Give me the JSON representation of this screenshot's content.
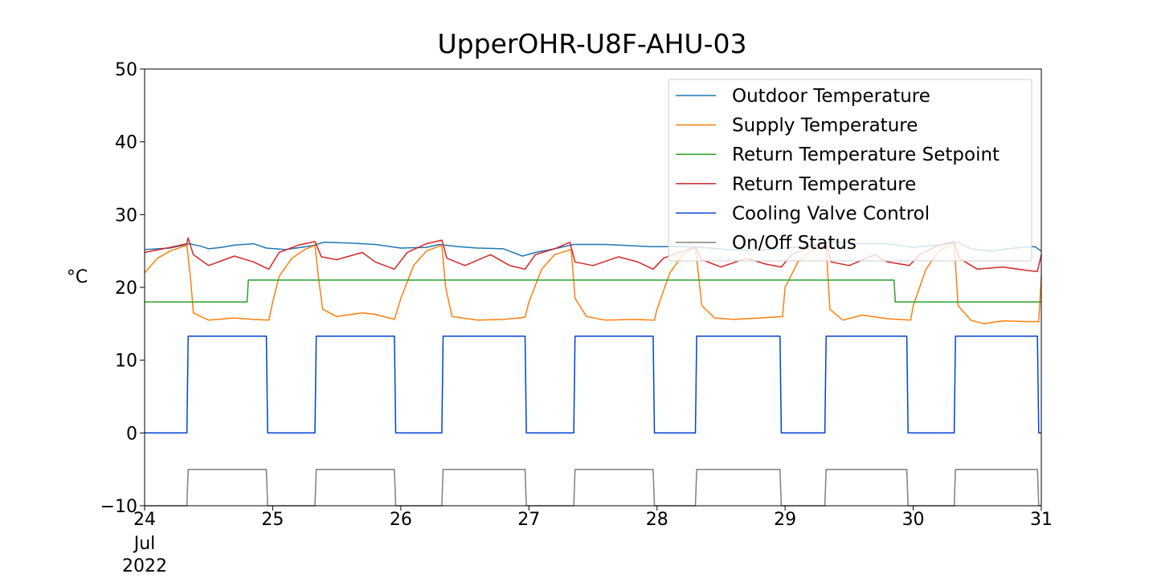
{
  "chart_data": {
    "type": "line",
    "title": "UpperOHR-U8F-AHU-03",
    "ylabel": "°C",
    "xlabel": "",
    "ylim": [
      -10,
      50
    ],
    "xlim": [
      24,
      31
    ],
    "yticks": [
      50,
      40,
      30,
      20,
      10,
      0,
      -10
    ],
    "ytick_labels": [
      "50",
      "40",
      "30",
      "20",
      "10",
      "0",
      "−10"
    ],
    "xticks": [
      24,
      25,
      26,
      27,
      28,
      29,
      30,
      31
    ],
    "xtick_labels": [
      "24",
      "25",
      "26",
      "27",
      "28",
      "29",
      "30",
      "31"
    ],
    "x_sublabels": [
      "Jul",
      "2022"
    ],
    "x_units": "day of July 2022",
    "grid": false,
    "legend_position": "top-right",
    "series": [
      {
        "name": "Outdoor Temperature",
        "color": "#1f77b4",
        "points": [
          [
            24.0,
            25.2
          ],
          [
            24.2,
            25.4
          ],
          [
            24.35,
            26.0
          ],
          [
            24.45,
            25.6
          ],
          [
            24.5,
            25.3
          ],
          [
            24.6,
            25.5
          ],
          [
            24.7,
            25.8
          ],
          [
            24.85,
            26.0
          ],
          [
            24.95,
            25.4
          ],
          [
            25.1,
            25.2
          ],
          [
            25.3,
            25.7
          ],
          [
            25.4,
            26.2
          ],
          [
            25.6,
            26.1
          ],
          [
            25.8,
            25.9
          ],
          [
            26.0,
            25.4
          ],
          [
            26.2,
            25.5
          ],
          [
            26.3,
            25.9
          ],
          [
            26.45,
            25.6
          ],
          [
            26.6,
            25.4
          ],
          [
            26.8,
            25.3
          ],
          [
            26.95,
            24.3
          ],
          [
            27.05,
            24.8
          ],
          [
            27.2,
            25.3
          ],
          [
            27.35,
            25.9
          ],
          [
            27.6,
            25.9
          ],
          [
            27.95,
            25.6
          ],
          [
            28.2,
            25.6
          ],
          [
            28.35,
            25.5
          ],
          [
            28.55,
            25.2
          ],
          [
            28.8,
            25.1
          ],
          [
            29.0,
            25.4
          ],
          [
            29.2,
            25.7
          ],
          [
            29.35,
            26.3
          ],
          [
            29.5,
            26.0
          ],
          [
            29.8,
            26.0
          ],
          [
            30.0,
            25.5
          ],
          [
            30.2,
            25.8
          ],
          [
            30.35,
            26.2
          ],
          [
            30.45,
            25.3
          ],
          [
            30.6,
            25.0
          ],
          [
            30.8,
            25.4
          ],
          [
            30.95,
            25.6
          ],
          [
            31.0,
            25.0
          ]
        ]
      },
      {
        "name": "Supply Temperature",
        "color": "#ff7f0e",
        "points": [
          [
            24.0,
            22.0
          ],
          [
            24.1,
            24.0
          ],
          [
            24.2,
            25.0
          ],
          [
            24.33,
            25.8
          ],
          [
            24.36,
            21.0
          ],
          [
            24.38,
            16.5
          ],
          [
            24.5,
            15.5
          ],
          [
            24.7,
            15.8
          ],
          [
            24.85,
            15.6
          ],
          [
            24.97,
            15.5
          ],
          [
            25.0,
            18.0
          ],
          [
            25.05,
            21.5
          ],
          [
            25.15,
            24.0
          ],
          [
            25.25,
            25.2
          ],
          [
            25.33,
            25.8
          ],
          [
            25.36,
            21.0
          ],
          [
            25.39,
            17.0
          ],
          [
            25.5,
            16.0
          ],
          [
            25.7,
            16.5
          ],
          [
            25.8,
            16.3
          ],
          [
            25.95,
            15.6
          ],
          [
            26.0,
            18.5
          ],
          [
            26.1,
            23.0
          ],
          [
            26.2,
            25.0
          ],
          [
            26.32,
            25.8
          ],
          [
            26.35,
            20.0
          ],
          [
            26.4,
            16.0
          ],
          [
            26.6,
            15.5
          ],
          [
            26.8,
            15.6
          ],
          [
            26.97,
            15.9
          ],
          [
            27.0,
            18.0
          ],
          [
            27.1,
            22.5
          ],
          [
            27.2,
            24.5
          ],
          [
            27.33,
            25.2
          ],
          [
            27.36,
            18.5
          ],
          [
            27.45,
            16.0
          ],
          [
            27.6,
            15.5
          ],
          [
            27.8,
            15.6
          ],
          [
            27.98,
            15.5
          ],
          [
            28.0,
            17.0
          ],
          [
            28.1,
            22.0
          ],
          [
            28.2,
            24.5
          ],
          [
            28.3,
            25.6
          ],
          [
            28.35,
            17.5
          ],
          [
            28.45,
            15.8
          ],
          [
            28.6,
            15.6
          ],
          [
            28.8,
            15.8
          ],
          [
            28.98,
            16.0
          ],
          [
            29.0,
            20.0
          ],
          [
            29.1,
            23.5
          ],
          [
            29.2,
            25.0
          ],
          [
            29.32,
            25.8
          ],
          [
            29.35,
            17.0
          ],
          [
            29.45,
            15.5
          ],
          [
            29.6,
            16.2
          ],
          [
            29.8,
            15.7
          ],
          [
            29.98,
            15.5
          ],
          [
            30.0,
            17.5
          ],
          [
            30.1,
            22.5
          ],
          [
            30.2,
            25.0
          ],
          [
            30.32,
            26.0
          ],
          [
            30.35,
            17.5
          ],
          [
            30.45,
            15.5
          ],
          [
            30.55,
            15.0
          ],
          [
            30.7,
            15.4
          ],
          [
            30.9,
            15.3
          ],
          [
            30.98,
            15.3
          ],
          [
            31.0,
            21.5
          ]
        ]
      },
      {
        "name": "Return Temperature Setpoint",
        "color": "#2ca02c",
        "points": [
          [
            24.0,
            18.0
          ],
          [
            24.8,
            18.0
          ],
          [
            24.81,
            21.0
          ],
          [
            29.85,
            21.0
          ],
          [
            29.86,
            18.0
          ],
          [
            31.0,
            18.0
          ]
        ]
      },
      {
        "name": "Return Temperature",
        "color": "#d62728",
        "points": [
          [
            24.0,
            24.8
          ],
          [
            24.2,
            25.5
          ],
          [
            24.33,
            26.0
          ],
          [
            24.34,
            26.8
          ],
          [
            24.38,
            24.5
          ],
          [
            24.5,
            23.0
          ],
          [
            24.7,
            24.3
          ],
          [
            24.85,
            23.5
          ],
          [
            24.97,
            22.5
          ],
          [
            25.05,
            24.8
          ],
          [
            25.2,
            25.8
          ],
          [
            25.33,
            26.3
          ],
          [
            25.38,
            24.2
          ],
          [
            25.5,
            23.8
          ],
          [
            25.7,
            24.8
          ],
          [
            25.8,
            23.5
          ],
          [
            25.95,
            22.5
          ],
          [
            26.05,
            24.8
          ],
          [
            26.2,
            26.0
          ],
          [
            26.32,
            26.5
          ],
          [
            26.36,
            24.0
          ],
          [
            26.5,
            23.0
          ],
          [
            26.7,
            24.5
          ],
          [
            26.85,
            23.0
          ],
          [
            26.97,
            22.5
          ],
          [
            27.05,
            24.5
          ],
          [
            27.2,
            25.3
          ],
          [
            27.32,
            26.2
          ],
          [
            27.36,
            23.5
          ],
          [
            27.5,
            23.0
          ],
          [
            27.7,
            24.2
          ],
          [
            27.85,
            23.5
          ],
          [
            27.97,
            22.5
          ],
          [
            28.05,
            24.0
          ],
          [
            28.2,
            25.0
          ],
          [
            28.3,
            25.5
          ],
          [
            28.35,
            23.8
          ],
          [
            28.5,
            22.8
          ],
          [
            28.7,
            24.0
          ],
          [
            28.85,
            23.2
          ],
          [
            28.97,
            22.8
          ],
          [
            29.05,
            24.5
          ],
          [
            29.2,
            25.6
          ],
          [
            29.32,
            26.0
          ],
          [
            29.36,
            23.5
          ],
          [
            29.5,
            23.0
          ],
          [
            29.7,
            24.5
          ],
          [
            29.8,
            23.5
          ],
          [
            29.97,
            23.0
          ],
          [
            30.05,
            24.5
          ],
          [
            30.2,
            25.8
          ],
          [
            30.32,
            26.3
          ],
          [
            30.36,
            24.0
          ],
          [
            30.5,
            22.5
          ],
          [
            30.7,
            22.8
          ],
          [
            30.9,
            22.3
          ],
          [
            30.97,
            22.2
          ],
          [
            31.0,
            24.5
          ]
        ]
      },
      {
        "name": "Cooling Valve Control",
        "color": "#0043d6",
        "points": [
          [
            24.0,
            0
          ],
          [
            24.33,
            0
          ],
          [
            24.34,
            13.3
          ],
          [
            24.95,
            13.3
          ],
          [
            24.96,
            0
          ],
          [
            25.33,
            0
          ],
          [
            25.34,
            13.3
          ],
          [
            25.95,
            13.3
          ],
          [
            25.96,
            0
          ],
          [
            26.32,
            0
          ],
          [
            26.33,
            13.3
          ],
          [
            26.97,
            13.3
          ],
          [
            26.98,
            0
          ],
          [
            27.35,
            0
          ],
          [
            27.36,
            13.3
          ],
          [
            27.97,
            13.3
          ],
          [
            27.98,
            0
          ],
          [
            28.3,
            0
          ],
          [
            28.31,
            13.3
          ],
          [
            28.96,
            13.3
          ],
          [
            28.97,
            0
          ],
          [
            29.31,
            0
          ],
          [
            29.32,
            13.3
          ],
          [
            29.95,
            13.3
          ],
          [
            29.96,
            0
          ],
          [
            30.32,
            0
          ],
          [
            30.33,
            13.3
          ],
          [
            30.97,
            13.3
          ],
          [
            30.98,
            0
          ],
          [
            31.0,
            0
          ]
        ]
      },
      {
        "name": "On/Off Status",
        "color": "#808080",
        "points": [
          [
            24.0,
            -10
          ],
          [
            24.33,
            -10
          ],
          [
            24.34,
            -5
          ],
          [
            24.95,
            -5
          ],
          [
            24.96,
            -10
          ],
          [
            25.33,
            -10
          ],
          [
            25.34,
            -5
          ],
          [
            25.95,
            -5
          ],
          [
            25.96,
            -10
          ],
          [
            26.32,
            -10
          ],
          [
            26.33,
            -5
          ],
          [
            26.97,
            -5
          ],
          [
            26.98,
            -10
          ],
          [
            27.35,
            -10
          ],
          [
            27.36,
            -5
          ],
          [
            27.97,
            -5
          ],
          [
            27.98,
            -10
          ],
          [
            28.3,
            -10
          ],
          [
            28.31,
            -5
          ],
          [
            28.96,
            -5
          ],
          [
            28.97,
            -10
          ],
          [
            29.31,
            -10
          ],
          [
            29.32,
            -5
          ],
          [
            29.95,
            -5
          ],
          [
            29.96,
            -10
          ],
          [
            30.32,
            -10
          ],
          [
            30.33,
            -5
          ],
          [
            30.97,
            -5
          ],
          [
            30.98,
            -10
          ],
          [
            31.0,
            -10
          ]
        ]
      }
    ]
  }
}
